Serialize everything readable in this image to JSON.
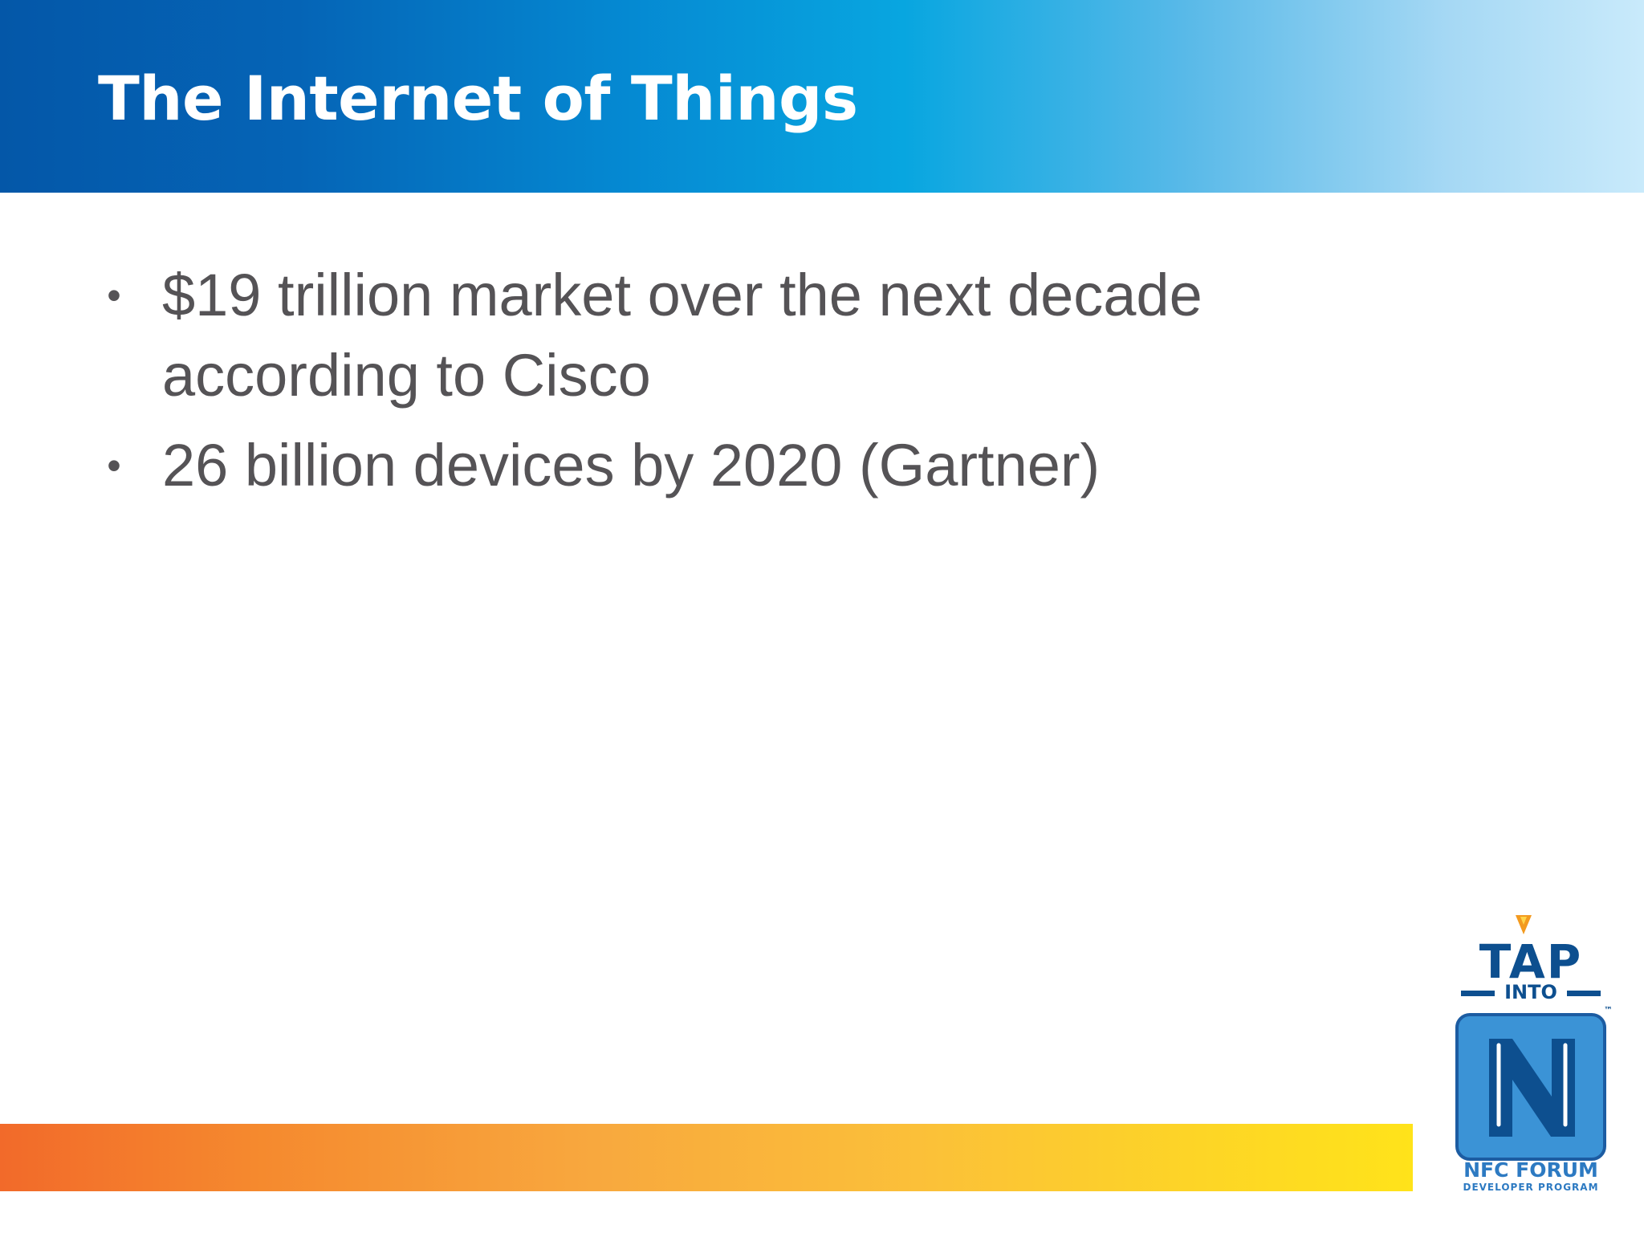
{
  "slide": {
    "title": "The Internet of Things",
    "bullets": [
      "$19 trillion market over the next decade according to Cisco",
      "26 billion devices by 2020 (Gartner)"
    ],
    "bullet_symbol": "•"
  },
  "logo": {
    "tap_text": "TAP",
    "into_text": "INTO",
    "forum_text": "NFC FORUM",
    "program_text": "DEVELOPER PROGRAM",
    "tm_text": "™",
    "icon": "nfc-n-mark-icon"
  },
  "colors": {
    "header_blue_dark": "#0457a8",
    "header_blue_light": "#c9eafb",
    "text_gray": "#555356",
    "footer_orange": "#f26a2a",
    "footer_yellow": "#ffe31a",
    "logo_navy": "#0d4f8f",
    "logo_blue": "#3b93d6",
    "logo_orange": "#f39a1f"
  }
}
